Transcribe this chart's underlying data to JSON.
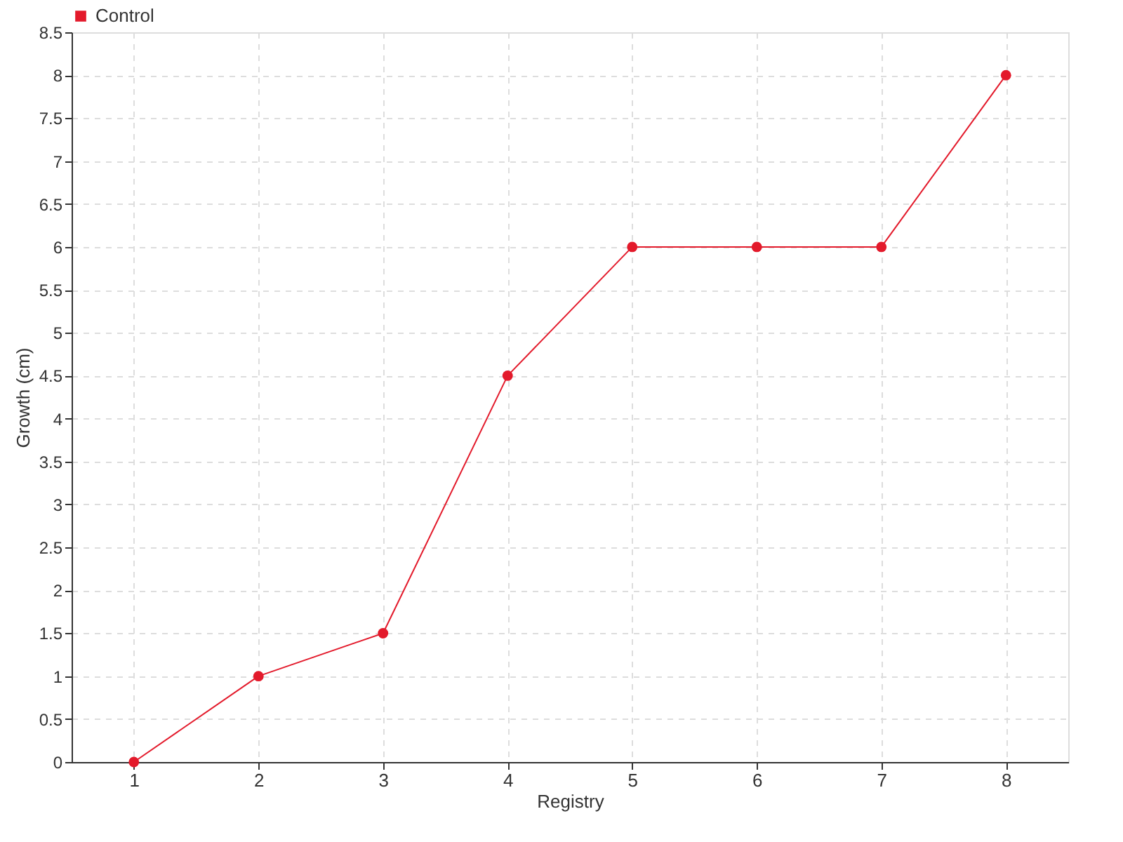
{
  "chart_data": {
    "type": "line",
    "xlabel": "Registry",
    "ylabel": "Growth (cm)",
    "categories": [
      "1",
      "2",
      "3",
      "4",
      "5",
      "6",
      "7",
      "8"
    ],
    "series": [
      {
        "name": "Control",
        "color": "#e31a2b",
        "values": [
          0,
          1,
          1.5,
          4.5,
          6,
          6,
          6,
          8
        ]
      }
    ],
    "ylim": [
      0,
      8.5
    ],
    "yticks": [
      0,
      0.5,
      1,
      1.5,
      2,
      2.5,
      3,
      3.5,
      4,
      4.5,
      5,
      5.5,
      6,
      6.5,
      7,
      7.5,
      8,
      8.5
    ],
    "grid": true,
    "legend": "top left",
    "marker": "circle",
    "line_style": "solid"
  }
}
